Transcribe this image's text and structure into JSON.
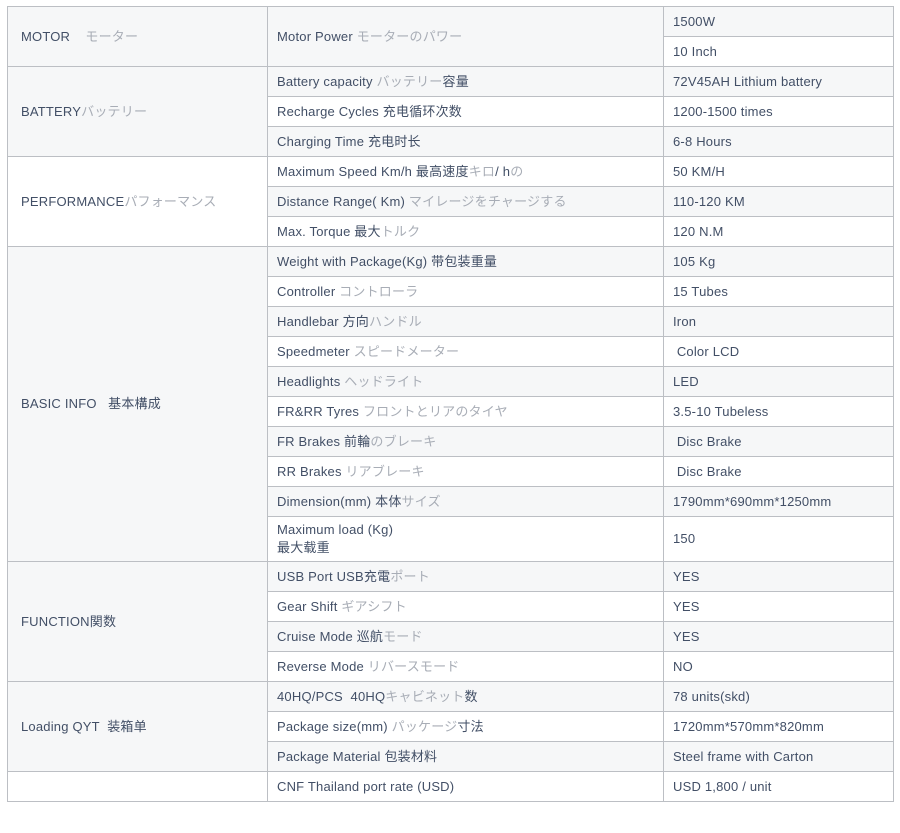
{
  "theme": {
    "text_dark": "#424f66",
    "text_light_kana": "#a8adb6",
    "border": "#bcbfc4",
    "row_bg": "#ffffff",
    "row_alt_bg": "#f6f7f8"
  },
  "sections": [
    {
      "category": "MOTOR    モーター",
      "label": "Motor Power モーターのパワー",
      "values": [
        "1500W",
        "10 Inch"
      ]
    },
    {
      "category": "BATTERYバッテリー",
      "rows": [
        {
          "label": "Battery capacity バッテリー容量",
          "value": "72V45AH Lithium battery"
        },
        {
          "label": "Recharge Cycles 充电循环次数",
          "value": "1200-1500 times"
        },
        {
          "label": "Charging Time 充电时长",
          "value": "6-8 Hours"
        }
      ]
    },
    {
      "category": "PERFORMANCEパフォーマンス",
      "rows": [
        {
          "label": "Maximum Speed Km/h 最高速度キロ/ hの",
          "value": "50 KM/H"
        },
        {
          "label": "Distance Range( Km) マイレージをチャージする",
          "value": "110-120 KM"
        },
        {
          "label": "Max. Torque 最大トルク",
          "value": "120 N.M"
        }
      ]
    },
    {
      "category": "BASIC INFO   基本構成",
      "rows": [
        {
          "label": "Weight with Package(Kg) 带包装重量",
          "value": "105 Kg"
        },
        {
          "label": "Controller コントローラ",
          "value": "15 Tubes"
        },
        {
          "label": "Handlebar 方向ハンドル",
          "value": "Iron"
        },
        {
          "label": "Speedmeter スピードメーター",
          "value": " Color LCD"
        },
        {
          "label": "Headlights ヘッドライト",
          "value": "LED"
        },
        {
          "label": "FR&RR Tyres フロントとリアのタイヤ",
          "value": "3.5-10 Tubeless"
        },
        {
          "label": "FR Brakes 前輪のブレーキ",
          "value": " Disc Brake"
        },
        {
          "label": "RR Brakes リアブレーキ",
          "value": " Disc Brake"
        },
        {
          "label": "Dimension(mm) 本体サイズ",
          "value": "1790mm*690mm*1250mm"
        },
        {
          "label": "Maximum load (Kg)\n最大载重",
          "value": "150"
        }
      ]
    },
    {
      "category": "FUNCTION関数",
      "rows": [
        {
          "label": "USB Port USB充電ポート",
          "value": "YES"
        },
        {
          "label": "Gear Shift ギアシフト",
          "value": "YES"
        },
        {
          "label": "Cruise Mode 巡航モード",
          "value": "YES"
        },
        {
          "label": "Reverse Mode リバースモード",
          "value": "NO"
        }
      ]
    },
    {
      "category": "Loading QYT  装箱单",
      "rows": [
        {
          "label": "40HQ/PCS  40HQキャビネット数",
          "value": "78 units(skd)"
        },
        {
          "label": "Package size(mm) パッケージ寸法",
          "value": "1720mm*570mm*820mm"
        },
        {
          "label": "Package Material 包装材料",
          "value": "Steel frame with Carton"
        }
      ]
    },
    {
      "category": "",
      "rows": [
        {
          "label": "CNF Thailand port rate (USD)",
          "value": "USD 1,800 / unit"
        }
      ]
    }
  ]
}
